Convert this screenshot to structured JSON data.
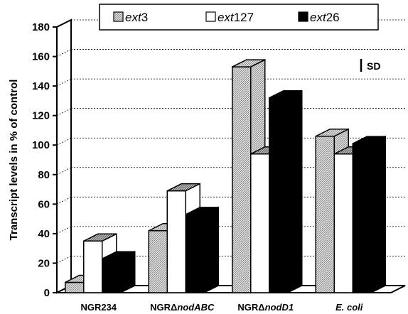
{
  "chart_data": {
    "type": "bar",
    "ylabel": "Transcript levels in % of control",
    "ylim": [
      0,
      180
    ],
    "yticks": [
      0,
      20,
      40,
      60,
      80,
      100,
      120,
      140,
      160,
      180
    ],
    "grid": true,
    "legend_position": "top",
    "categories": [
      {
        "parts": [
          {
            "t": "NGR234",
            "i": false
          }
        ]
      },
      {
        "parts": [
          {
            "t": "NGRΔ",
            "i": false
          },
          {
            "t": "nodABC",
            "i": true
          }
        ]
      },
      {
        "parts": [
          {
            "t": "NGRΔ",
            "i": false
          },
          {
            "t": "nodD1",
            "i": true
          }
        ]
      },
      {
        "parts": [
          {
            "t": "E. coli",
            "i": true
          }
        ]
      }
    ],
    "series": [
      {
        "name_italic": "ext",
        "name_plain": "3",
        "pattern": "stipple",
        "color": "#c8c8c8",
        "values": [
          7,
          42,
          153,
          106
        ]
      },
      {
        "name_italic": "ext",
        "name_plain": "127",
        "pattern": "none",
        "color": "#ffffff",
        "values": [
          35,
          69,
          94,
          94
        ]
      },
      {
        "name_italic": "ext",
        "name_plain": "26",
        "pattern": "solid",
        "color": "#000000",
        "values": [
          23,
          53,
          132,
          101
        ]
      }
    ],
    "annotation": "SD"
  }
}
